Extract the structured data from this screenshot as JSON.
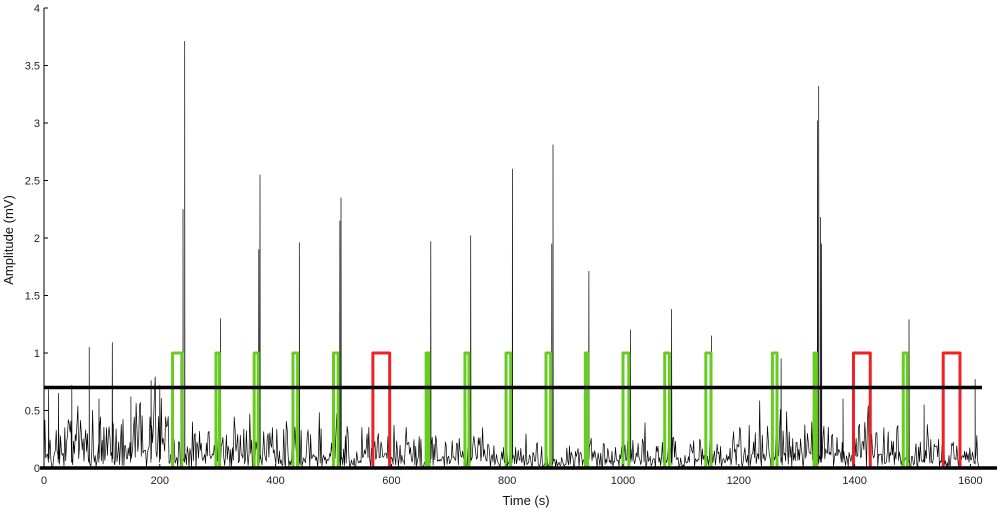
{
  "chart_data": {
    "type": "line",
    "xlabel": "Time (s)",
    "ylabel": "Amplitude (mV)",
    "xlim": [
      0,
      1620
    ],
    "ylim": [
      0,
      4
    ],
    "xticks": [
      0,
      200,
      400,
      600,
      800,
      1000,
      1200,
      1400,
      1600
    ],
    "yticks": [
      0,
      0.5,
      1,
      1.5,
      2,
      2.5,
      3,
      3.5,
      4
    ],
    "xtick_labels": [
      "0",
      "200",
      "400",
      "600",
      "800",
      "1000",
      "1200",
      "1400",
      "1600"
    ],
    "ytick_labels": [
      "0",
      "0.5",
      "1",
      "1.5",
      "2",
      "2.5",
      "3",
      "3.5",
      "4"
    ],
    "grid": false,
    "threshold": 0.7,
    "signal": {
      "color": "#000000",
      "peaks": [
        {
          "x": 8,
          "y": 0.68
        },
        {
          "x": 25,
          "y": 0.65
        },
        {
          "x": 48,
          "y": 0.72
        },
        {
          "x": 78,
          "y": 1.05
        },
        {
          "x": 95,
          "y": 0.6
        },
        {
          "x": 118,
          "y": 1.09
        },
        {
          "x": 150,
          "y": 0.62
        },
        {
          "x": 185,
          "y": 0.76
        },
        {
          "x": 200,
          "y": 0.72
        },
        {
          "x": 243,
          "y": 3.71
        },
        {
          "x": 240,
          "y": 2.25
        },
        {
          "x": 305,
          "y": 1.3
        },
        {
          "x": 373,
          "y": 2.55
        },
        {
          "x": 371,
          "y": 1.9
        },
        {
          "x": 441,
          "y": 1.96
        },
        {
          "x": 513,
          "y": 2.35
        },
        {
          "x": 511,
          "y": 2.15
        },
        {
          "x": 668,
          "y": 1.97
        },
        {
          "x": 737,
          "y": 2.02
        },
        {
          "x": 809,
          "y": 2.6
        },
        {
          "x": 879,
          "y": 2.81
        },
        {
          "x": 877,
          "y": 1.95
        },
        {
          "x": 941,
          "y": 1.71
        },
        {
          "x": 1013,
          "y": 1.2
        },
        {
          "x": 1084,
          "y": 1.38
        },
        {
          "x": 1153,
          "y": 1.15
        },
        {
          "x": 1273,
          "y": 0.95
        },
        {
          "x": 1338,
          "y": 3.32
        },
        {
          "x": 1336,
          "y": 3.02
        },
        {
          "x": 1343,
          "y": 1.95
        },
        {
          "x": 1341,
          "y": 2.18
        },
        {
          "x": 1380,
          "y": 0.6
        },
        {
          "x": 1494,
          "y": 1.29
        },
        {
          "x": 1520,
          "y": 0.55
        },
        {
          "x": 1608,
          "y": 0.77
        }
      ]
    },
    "series": [
      {
        "color": "#66cc22",
        "values": [
          {
            "start": 222,
            "end": 238,
            "level": 1
          },
          {
            "start": 297,
            "end": 303,
            "level": 1
          },
          {
            "start": 363,
            "end": 370,
            "level": 1
          },
          {
            "start": 430,
            "end": 438,
            "level": 1
          },
          {
            "start": 500,
            "end": 508,
            "level": 1
          },
          {
            "start": 660,
            "end": 665,
            "level": 1
          },
          {
            "start": 727,
            "end": 734,
            "level": 1
          },
          {
            "start": 798,
            "end": 806,
            "level": 1
          },
          {
            "start": 867,
            "end": 875,
            "level": 1
          },
          {
            "start": 935,
            "end": 939,
            "level": 1
          },
          {
            "start": 1000,
            "end": 1010,
            "level": 1
          },
          {
            "start": 1072,
            "end": 1080,
            "level": 1
          },
          {
            "start": 1143,
            "end": 1152,
            "level": 1
          },
          {
            "start": 1258,
            "end": 1266,
            "level": 1
          },
          {
            "start": 1330,
            "end": 1334,
            "level": 1
          },
          {
            "start": 1484,
            "end": 1491,
            "level": 1
          }
        ]
      },
      {
        "color": "#ee2222",
        "values": [
          {
            "start": 568,
            "end": 597,
            "level": 1
          },
          {
            "start": 1398,
            "end": 1427,
            "level": 1
          },
          {
            "start": 1553,
            "end": 1582,
            "level": 1
          }
        ]
      }
    ]
  }
}
